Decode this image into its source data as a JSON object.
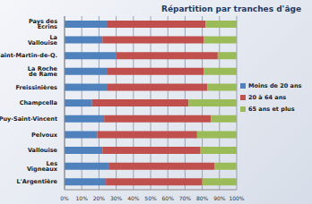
{
  "chart_data": {
    "type": "bar",
    "title": "Répartition par tranches d'âge",
    "orientation": "horizontal",
    "stacked": true,
    "grid": true,
    "legend": "right",
    "categories": [
      "Pays des Ecrins",
      "La Vallouise",
      "Saint-Martin-de-Q.",
      "La Roche de Rame",
      "Freissinières",
      "Champcella",
      "Puy-Saint-Vincent",
      "Pelvoux",
      "Vallouise",
      "Les Vigneaux",
      "L'Argentière"
    ],
    "series": [
      {
        "name": "Moins de 20 ans",
        "color": "#4f81bd",
        "values": [
          25,
          22,
          30,
          25,
          25,
          16,
          23,
          19,
          22,
          26,
          24
        ]
      },
      {
        "name": "20 à 64 ans",
        "color": "#c0504d",
        "values": [
          57,
          59,
          59,
          56,
          58,
          56,
          62,
          58,
          57,
          61,
          56
        ]
      },
      {
        "name": "65 ans et plus",
        "color": "#9bbb59",
        "values": [
          18,
          19,
          11,
          19,
          17,
          28,
          15,
          23,
          21,
          13,
          20
        ]
      }
    ],
    "xlim": [
      0,
      100
    ],
    "xticks": [
      {
        "value": 0,
        "label": "0%"
      },
      {
        "value": 10,
        "label": "10%"
      },
      {
        "value": 20,
        "label": "20%"
      },
      {
        "value": 30,
        "label": "30%"
      },
      {
        "value": 40,
        "label": "40%"
      },
      {
        "value": 50,
        "label": "50%"
      },
      {
        "value": 60,
        "label": "60%"
      },
      {
        "value": 70,
        "label": "70%"
      },
      {
        "value": 80,
        "label": "80%"
      },
      {
        "value": 90,
        "label": "90%"
      },
      {
        "value": 100,
        "label": "100%"
      }
    ]
  }
}
